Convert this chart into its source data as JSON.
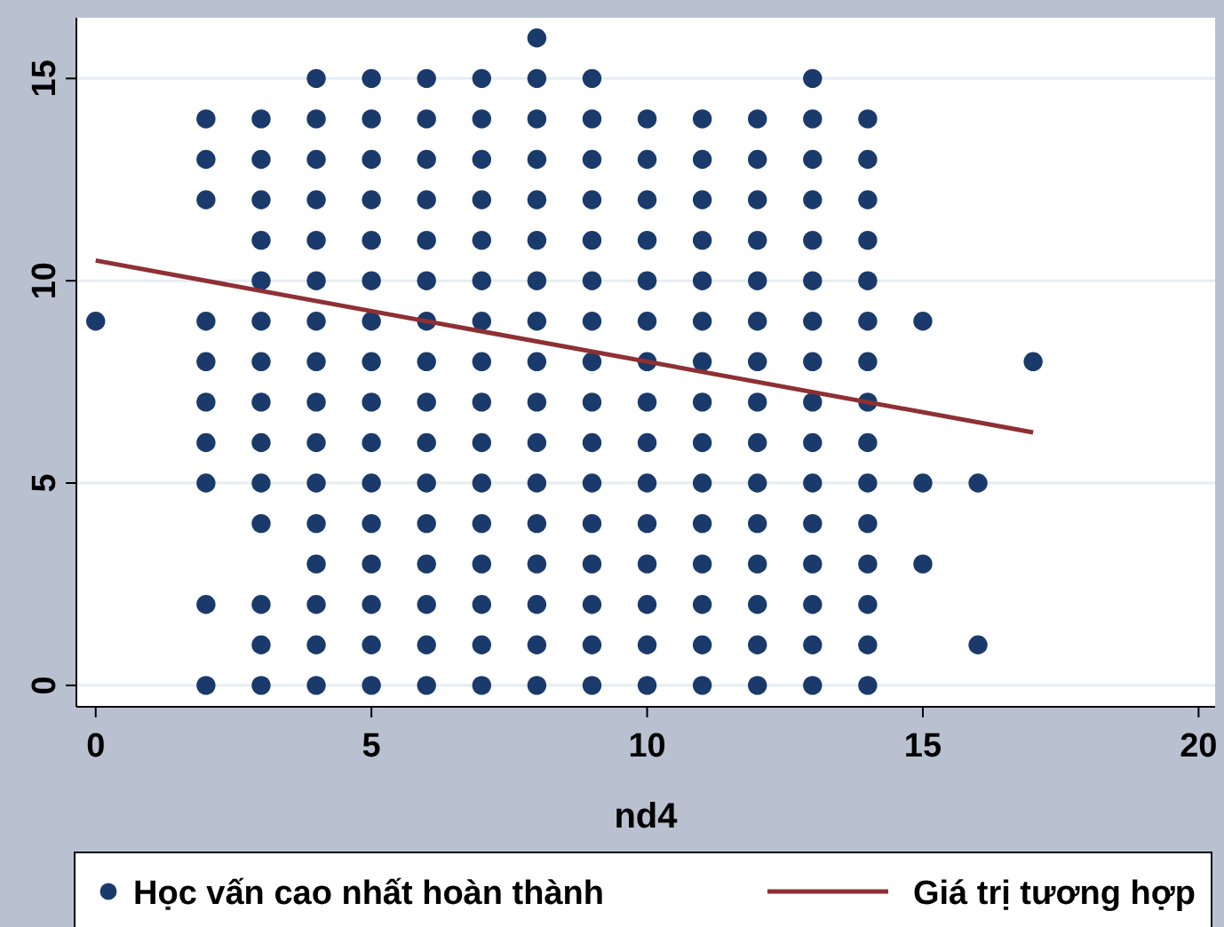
{
  "chart_data": {
    "type": "scatter",
    "xlabel": "nd4",
    "xlim": [
      -0.35,
      20.3
    ],
    "ylim": [
      -0.53,
      16.5
    ],
    "xticks": [
      0,
      5,
      10,
      15,
      20
    ],
    "yticks": [
      0,
      5,
      10,
      15
    ],
    "grid": "y",
    "legend": "bottom",
    "series": [
      {
        "name": "Học vấn cao nhất hoàn thành",
        "marker": "circle",
        "color": "#1a3a6b",
        "x": [
          0,
          2,
          2,
          2,
          2,
          2,
          2,
          2,
          2,
          2,
          2,
          3,
          3,
          3,
          3,
          3,
          3,
          3,
          3,
          3,
          3,
          3,
          3,
          3,
          3,
          4,
          4,
          4,
          4,
          4,
          4,
          4,
          4,
          4,
          4,
          4,
          4,
          4,
          4,
          4,
          4,
          5,
          5,
          5,
          5,
          5,
          5,
          5,
          5,
          5,
          5,
          5,
          5,
          5,
          5,
          5,
          5,
          6,
          6,
          6,
          6,
          6,
          6,
          6,
          6,
          6,
          6,
          6,
          6,
          6,
          6,
          6,
          6,
          7,
          7,
          7,
          7,
          7,
          7,
          7,
          7,
          7,
          7,
          7,
          7,
          7,
          7,
          7,
          7,
          8,
          8,
          8,
          8,
          8,
          8,
          8,
          8,
          8,
          8,
          8,
          8,
          8,
          8,
          8,
          8,
          8,
          9,
          9,
          9,
          9,
          9,
          9,
          9,
          9,
          9,
          9,
          9,
          9,
          9,
          9,
          9,
          9,
          10,
          10,
          10,
          10,
          10,
          10,
          10,
          10,
          10,
          10,
          10,
          10,
          10,
          10,
          10,
          11,
          11,
          11,
          11,
          11,
          11,
          11,
          11,
          11,
          11,
          11,
          11,
          11,
          11,
          11,
          12,
          12,
          12,
          12,
          12,
          12,
          12,
          12,
          12,
          12,
          12,
          12,
          12,
          12,
          12,
          13,
          13,
          13,
          13,
          13,
          13,
          13,
          13,
          13,
          13,
          13,
          13,
          13,
          13,
          13,
          13,
          14,
          14,
          14,
          14,
          14,
          14,
          14,
          14,
          14,
          14,
          14,
          14,
          14,
          14,
          14,
          15,
          15,
          15,
          16,
          16,
          17
        ],
        "values": [
          9,
          0,
          2,
          5,
          6,
          7,
          8,
          9,
          12,
          13,
          14,
          0,
          1,
          2,
          4,
          5,
          6,
          7,
          8,
          9,
          10,
          11,
          12,
          13,
          14,
          0,
          1,
          2,
          3,
          4,
          5,
          6,
          7,
          8,
          9,
          10,
          11,
          12,
          13,
          14,
          15,
          0,
          1,
          2,
          3,
          4,
          5,
          6,
          7,
          8,
          9,
          10,
          11,
          12,
          13,
          14,
          15,
          0,
          1,
          2,
          3,
          4,
          5,
          6,
          7,
          8,
          9,
          10,
          11,
          12,
          13,
          14,
          15,
          0,
          1,
          2,
          3,
          4,
          5,
          6,
          7,
          8,
          9,
          10,
          11,
          12,
          13,
          14,
          15,
          0,
          1,
          2,
          3,
          4,
          5,
          6,
          7,
          8,
          9,
          10,
          11,
          12,
          13,
          14,
          15,
          16,
          0,
          1,
          2,
          3,
          4,
          5,
          6,
          7,
          8,
          9,
          10,
          11,
          12,
          13,
          14,
          15,
          0,
          1,
          2,
          3,
          4,
          5,
          6,
          7,
          8,
          9,
          10,
          11,
          12,
          13,
          14,
          0,
          1,
          2,
          3,
          4,
          5,
          6,
          7,
          8,
          9,
          10,
          11,
          12,
          13,
          14,
          0,
          1,
          2,
          3,
          4,
          5,
          6,
          7,
          8,
          9,
          10,
          11,
          12,
          13,
          14,
          0,
          1,
          2,
          3,
          4,
          5,
          6,
          7,
          8,
          9,
          10,
          11,
          12,
          13,
          14,
          15,
          0,
          1,
          2,
          3,
          4,
          5,
          6,
          7,
          8,
          9,
          10,
          11,
          12,
          13,
          14,
          3,
          5,
          9,
          1,
          5,
          8
        ]
      },
      {
        "name": "Giá trị tương hợp",
        "type": "line",
        "marker": "none",
        "color": "#8e3034",
        "x": [
          0,
          17
        ],
        "values": [
          10.5,
          6.25
        ]
      }
    ]
  }
}
